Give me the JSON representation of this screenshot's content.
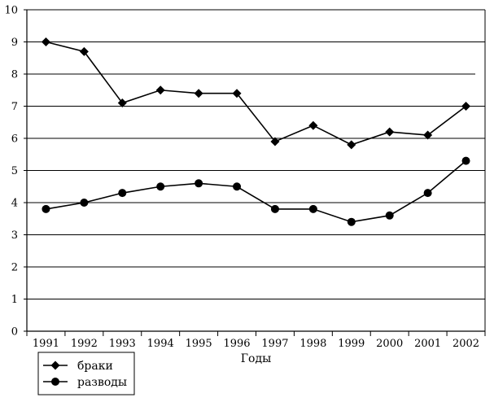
{
  "chart_data": {
    "type": "line",
    "xlabel": "Годы",
    "ylabel": "",
    "ylim": [
      0,
      10
    ],
    "yticks": [
      "0",
      "1",
      "2",
      "3",
      "4",
      "5",
      "6",
      "7",
      "8",
      "9",
      "10"
    ],
    "categories": [
      "1991",
      "1992",
      "1993",
      "1994",
      "1995",
      "1996",
      "1997",
      "1998",
      "1999",
      "2000",
      "2001",
      "2002"
    ],
    "series": [
      {
        "name": "браки",
        "marker": "diamond",
        "color": "#000000",
        "values": [
          9.0,
          8.7,
          7.1,
          7.5,
          7.4,
          7.4,
          5.9,
          6.4,
          5.8,
          6.2,
          6.1,
          7.0
        ]
      },
      {
        "name": "разводы",
        "marker": "circle",
        "color": "#000000",
        "values": [
          3.8,
          4.0,
          4.3,
          4.5,
          4.6,
          4.5,
          3.8,
          3.8,
          3.4,
          3.6,
          4.3,
          5.3
        ]
      }
    ],
    "grid": true,
    "legend_position": "bottom-left"
  }
}
